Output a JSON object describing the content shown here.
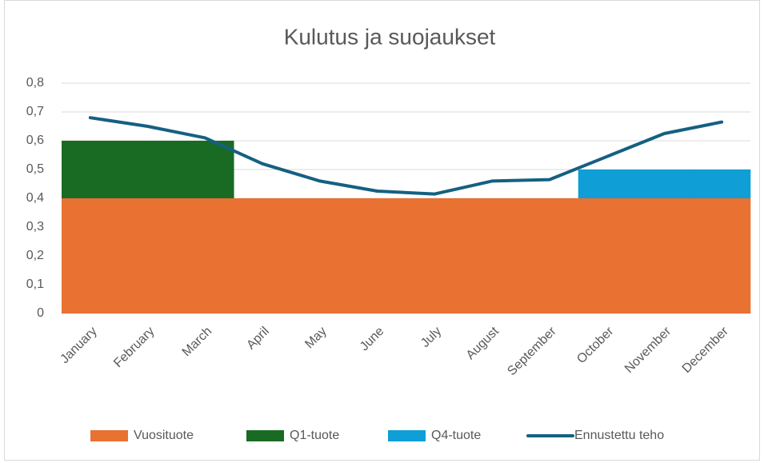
{
  "chart_data": {
    "type": "stacked-bar-line",
    "title": "Kulutus ja suojaukset",
    "categories": [
      "January",
      "February",
      "March",
      "April",
      "May",
      "June",
      "July",
      "August",
      "September",
      "October",
      "November",
      "December"
    ],
    "series": [
      {
        "name": "Vuosituote",
        "kind": "bar",
        "color": "#e97132",
        "values": [
          0.4,
          0.4,
          0.4,
          0.4,
          0.4,
          0.4,
          0.4,
          0.4,
          0.4,
          0.4,
          0.4,
          0.4
        ]
      },
      {
        "name": "Q1-tuote",
        "kind": "bar",
        "color": "#196b24",
        "values": [
          0.2,
          0.2,
          0.2,
          0,
          0,
          0,
          0,
          0,
          0,
          0,
          0,
          0
        ]
      },
      {
        "name": "Q4-tuote",
        "kind": "bar",
        "color": "#0f9ed5",
        "values": [
          0,
          0,
          0,
          0,
          0,
          0,
          0,
          0,
          0,
          0.1,
          0.1,
          0.1
        ]
      },
      {
        "name": "Ennustettu teho",
        "kind": "line",
        "color": "#156082",
        "values": [
          0.68,
          0.65,
          0.61,
          0.52,
          0.46,
          0.425,
          0.415,
          0.46,
          0.465,
          0.545,
          0.625,
          0.665
        ]
      }
    ],
    "ylim": [
      0,
      0.8
    ],
    "yticks": [
      0,
      {
        "value": 0.1,
        "label": "0,1"
      },
      {
        "value": 0.2,
        "label": "0,2"
      },
      {
        "value": 0.3,
        "label": "0,3"
      },
      {
        "value": 0.4,
        "label": "0,4"
      },
      {
        "value": 0.5,
        "label": "0,5"
      },
      {
        "value": 0.6,
        "label": "0,6"
      },
      {
        "value": 0.7,
        "label": "0,7"
      },
      {
        "value": 0.8,
        "label": "0,8"
      }
    ],
    "grid": true,
    "legend": "bottom"
  }
}
